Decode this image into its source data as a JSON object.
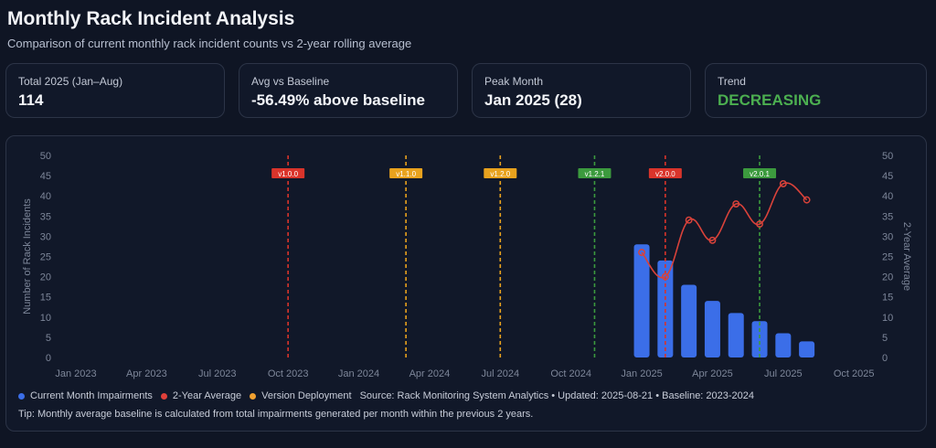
{
  "page": {
    "title": "Monthly Rack Incident Analysis",
    "subtitle": "Comparison of current monthly rack incident counts vs 2-year rolling average"
  },
  "kpis": [
    {
      "label": "Total 2025 (Jan–Aug)",
      "value": "114"
    },
    {
      "label": "Avg vs Baseline",
      "value": "-56.49% above baseline"
    },
    {
      "label": "Peak Month",
      "value": "Jan 2025 (28)"
    },
    {
      "label": "Trend",
      "value": "DECREASING"
    }
  ],
  "legend": {
    "items": [
      {
        "label": "Current Month Impairments",
        "color": "#3b6ee8"
      },
      {
        "label": "2-Year Average",
        "color": "#e0403a"
      },
      {
        "label": "Version Deployment",
        "color": "#f0a030"
      }
    ],
    "source": "Source: Rack Monitoring System Analytics • Updated: 2025-08-21 • Baseline: 2023-2024"
  },
  "tip": "Tip: Monthly average baseline is calculated from total impairments generated per month within the previous 2 years.",
  "colors": {
    "bar": "#3b6ee8",
    "line": "#d9423a",
    "grid": "#1f2738",
    "axis_text": "#7d8699"
  },
  "chart_data": {
    "type": "bar",
    "title": "Monthly Rack Incident Analysis",
    "ylabel_left": "Number of Rack Incidents",
    "ylabel_right": "2-Year Average",
    "ylim": [
      0,
      50
    ],
    "yticks": [
      0,
      5,
      10,
      15,
      20,
      25,
      30,
      35,
      40,
      45,
      50
    ],
    "x_range_months": [
      0,
      34
    ],
    "x_ticks": [
      {
        "label": "Jan 2023",
        "month": 0
      },
      {
        "label": "Apr 2023",
        "month": 3
      },
      {
        "label": "Jul 2023",
        "month": 6
      },
      {
        "label": "Oct 2023",
        "month": 9
      },
      {
        "label": "Jan 2024",
        "month": 12
      },
      {
        "label": "Apr 2024",
        "month": 15
      },
      {
        "label": "Jul 2024",
        "month": 18
      },
      {
        "label": "Oct 2024",
        "month": 21
      },
      {
        "label": "Jan 2025",
        "month": 24
      },
      {
        "label": "Apr 2025",
        "month": 27
      },
      {
        "label": "Jul 2025",
        "month": 30
      },
      {
        "label": "Oct 2025",
        "month": 33
      }
    ],
    "series": [
      {
        "name": "Current Month Impairments",
        "kind": "bar",
        "months": [
          "Jan 2025",
          "Feb 2025",
          "Mar 2025",
          "Apr 2025",
          "May 2025",
          "Jun 2025",
          "Jul 2025",
          "Aug 2025"
        ],
        "x": [
          24,
          25,
          26,
          27,
          28,
          29,
          30,
          31
        ],
        "values": [
          28,
          24,
          18,
          14,
          11,
          9,
          6,
          4
        ]
      },
      {
        "name": "2-Year Average",
        "kind": "line",
        "x": [
          24,
          25,
          26,
          27,
          28,
          29,
          30,
          31
        ],
        "values": [
          26,
          20,
          34,
          29,
          38,
          33,
          43,
          39
        ]
      }
    ],
    "deployments": [
      {
        "version": "v1.0.0",
        "month": 9.0,
        "color": "#d9342b"
      },
      {
        "version": "v1.1.0",
        "month": 14.0,
        "color": "#e8a21e"
      },
      {
        "version": "v1.2.0",
        "month": 18.0,
        "color": "#e8a21e"
      },
      {
        "version": "v1.2.1",
        "month": 22.0,
        "color": "#3c9a3e"
      },
      {
        "version": "v2.0.0",
        "month": 25.0,
        "color": "#d9342b"
      },
      {
        "version": "v2.0.1",
        "month": 29.0,
        "color": "#3c9a3e"
      }
    ]
  }
}
